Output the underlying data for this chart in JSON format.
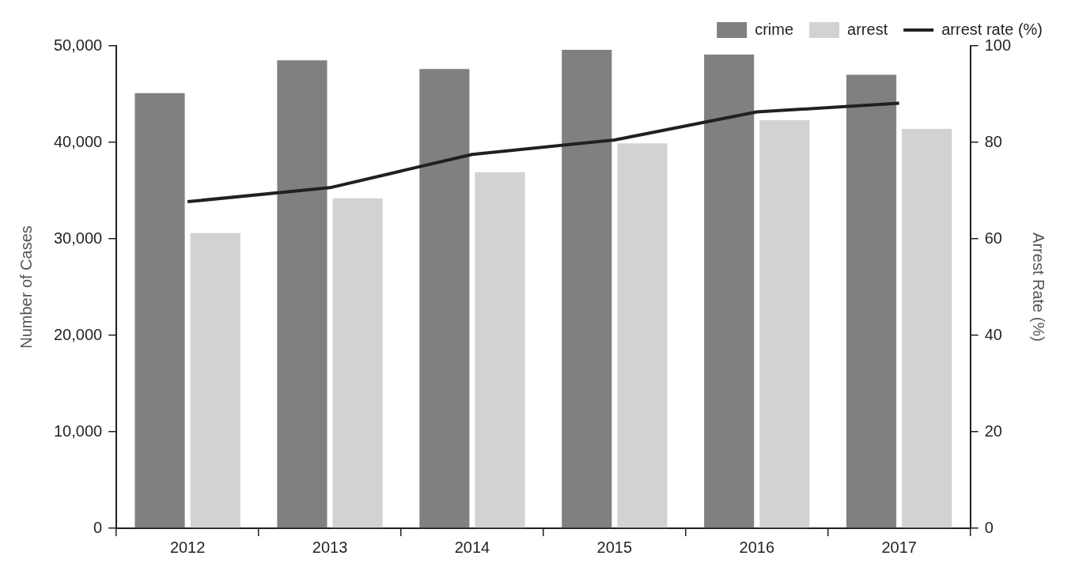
{
  "chart_data": {
    "type": "bar",
    "categories": [
      "2012",
      "2013",
      "2014",
      "2015",
      "2016",
      "2017"
    ],
    "series": [
      {
        "name": "crime",
        "color": "#808083",
        "values": [
          45100,
          48500,
          47600,
          49600,
          49100,
          47000
        ]
      },
      {
        "name": "arrest",
        "color": "#d1d2d4",
        "values": [
          30600,
          34200,
          36900,
          39900,
          42300,
          41400
        ]
      },
      {
        "name": "arrest rate (%)",
        "type": "line",
        "axis": "y2",
        "color": "#231f20",
        "values": [
          67.7,
          70.6,
          77.5,
          80.5,
          86.3,
          88.1
        ]
      }
    ],
    "ylabel": "Number of Cases",
    "y2label": "Arrest Rate (%)",
    "ylim": [
      0,
      50000
    ],
    "yticks": [
      {
        "value": 0,
        "label": "0"
      },
      {
        "value": 10000,
        "label": "10,000"
      },
      {
        "value": 20000,
        "label": "20,000"
      },
      {
        "value": 30000,
        "label": "30,000"
      },
      {
        "value": 40000,
        "label": "40,000"
      },
      {
        "value": 50000,
        "label": "50,000"
      }
    ],
    "y2lim": [
      0,
      100
    ],
    "y2ticks": [
      0,
      20,
      40,
      60,
      80,
      100
    ],
    "grid": false,
    "legend": "top right",
    "marker": "none",
    "line_style": "solid"
  }
}
